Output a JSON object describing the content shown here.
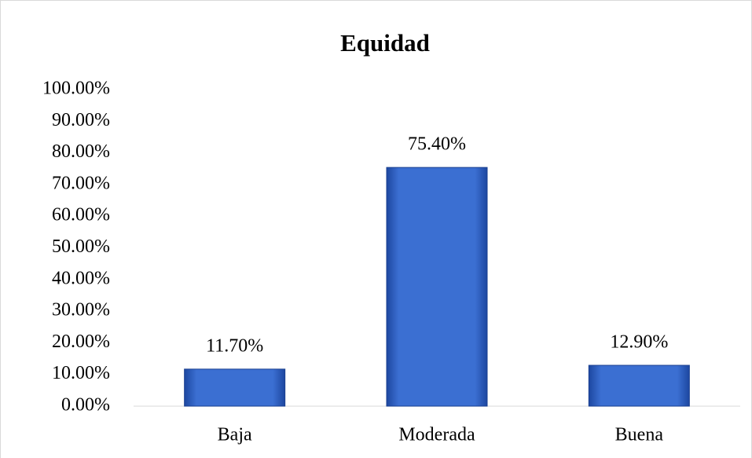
{
  "chart_data": {
    "type": "bar",
    "title": "Equidad",
    "categories": [
      "Baja",
      "Moderada",
      "Buena"
    ],
    "values": [
      11.7,
      75.4,
      12.9
    ],
    "value_labels": [
      "11.70%",
      "75.40%",
      "12.90%"
    ],
    "color": "#3b6fd2",
    "ylim": [
      0,
      100
    ],
    "yticks": [
      {
        "value": 0,
        "label": "0.00%"
      },
      {
        "value": 10,
        "label": "10.00%"
      },
      {
        "value": 20,
        "label": "20.00%"
      },
      {
        "value": 30,
        "label": "30.00%"
      },
      {
        "value": 40,
        "label": "40.00%"
      },
      {
        "value": 50,
        "label": "50.00%"
      },
      {
        "value": 60,
        "label": "60.00%"
      },
      {
        "value": 70,
        "label": "70.00%"
      },
      {
        "value": 80,
        "label": "80.00%"
      },
      {
        "value": 90,
        "label": "90.00%"
      },
      {
        "value": 100,
        "label": "100.00%"
      }
    ],
    "grid": false
  }
}
